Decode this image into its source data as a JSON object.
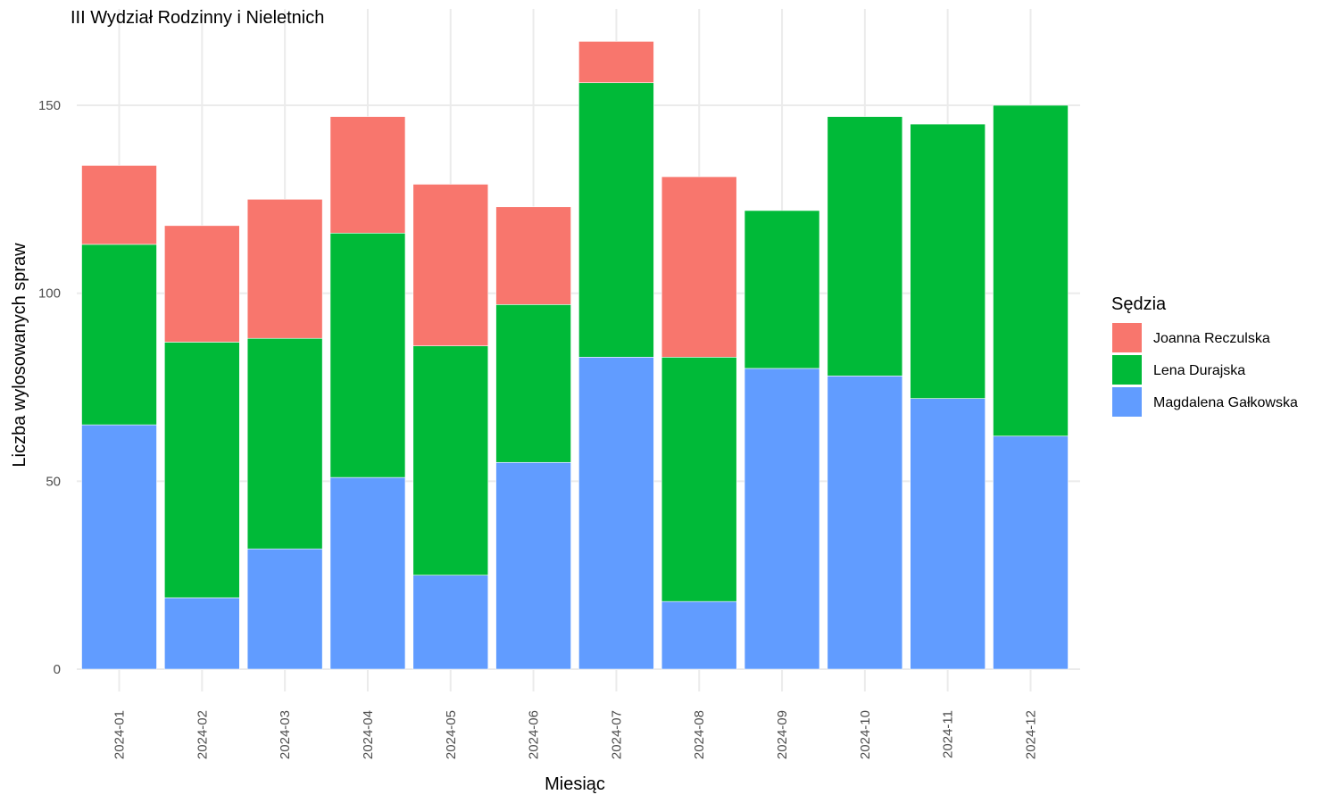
{
  "chart_data": {
    "type": "bar",
    "stacked": true,
    "title": "III Wydział Rodzinny i Nieletnich",
    "xlabel": "Miesiąc",
    "ylabel": "Liczba wylosowanych spraw",
    "ylim": [
      0,
      170
    ],
    "yticks": [
      0,
      50,
      100,
      150
    ],
    "grid": true,
    "legend_title": "Sędzia",
    "legend_position": "right",
    "categories": [
      "2024-01",
      "2024-02",
      "2024-03",
      "2024-04",
      "2024-05",
      "2024-06",
      "2024-07",
      "2024-08",
      "2024-09",
      "2024-10",
      "2024-11",
      "2024-12"
    ],
    "series": [
      {
        "name": "Magdalena Gałkowska",
        "color": "#619CFF",
        "values": [
          65,
          19,
          32,
          51,
          25,
          55,
          83,
          18,
          80,
          78,
          72,
          62
        ]
      },
      {
        "name": "Lena Durajska",
        "color": "#00BA38",
        "values": [
          48,
          68,
          56,
          65,
          61,
          42,
          73,
          65,
          42,
          69,
          73,
          88
        ]
      },
      {
        "name": "Joanna Reczulska",
        "color": "#F8766D",
        "values": [
          21,
          31,
          37,
          31,
          43,
          26,
          11,
          48,
          0,
          0,
          0,
          0
        ]
      }
    ],
    "legend_order": [
      "Joanna Reczulska",
      "Lena Durajska",
      "Magdalena Gałkowska"
    ]
  }
}
